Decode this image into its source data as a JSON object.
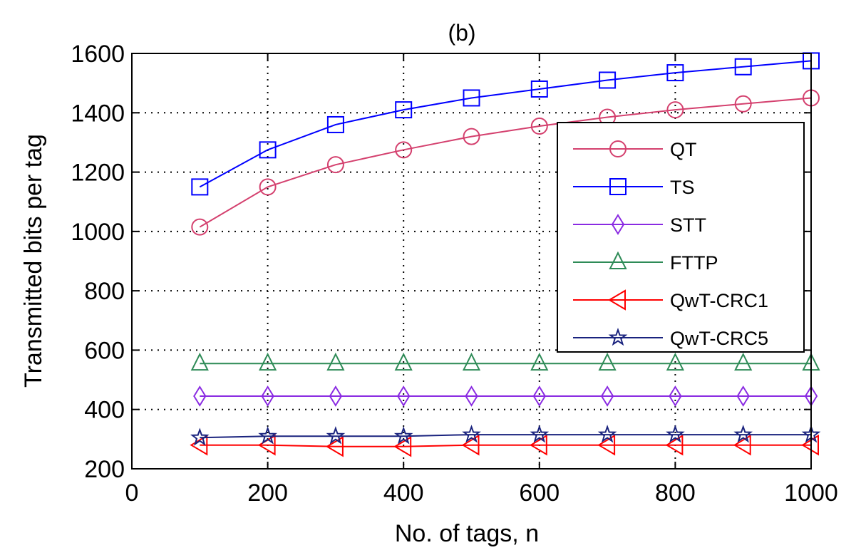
{
  "chart_data": {
    "type": "line",
    "title": "(b)",
    "xlabel": "No. of tags, n",
    "ylabel": "Transmitted bits per tag",
    "xlim": [
      0,
      1000
    ],
    "ylim": [
      200,
      1600
    ],
    "xticks": [
      0,
      200,
      400,
      600,
      800,
      1000
    ],
    "yticks": [
      200,
      400,
      600,
      800,
      1000,
      1200,
      1400,
      1600
    ],
    "xtick_labels": [
      "0",
      "200",
      "400",
      "600",
      "800",
      "1000"
    ],
    "ytick_labels": [
      "200",
      "400",
      "600",
      "800",
      "1000",
      "1200",
      "1400",
      "1600"
    ],
    "grid": true,
    "legend_position": "center-right",
    "x": [
      100,
      200,
      300,
      400,
      500,
      600,
      700,
      800,
      900,
      1000
    ],
    "series": [
      {
        "name": "QT",
        "color": "#d4406e",
        "marker": "circle",
        "values": [
          1015,
          1150,
          1225,
          1275,
          1320,
          1355,
          1385,
          1410,
          1430,
          1450
        ]
      },
      {
        "name": "TS",
        "color": "#0000ff",
        "marker": "square",
        "values": [
          1150,
          1275,
          1360,
          1410,
          1450,
          1480,
          1510,
          1535,
          1555,
          1575
        ]
      },
      {
        "name": "STT",
        "color": "#8a2be2",
        "marker": "diamond",
        "values": [
          445,
          445,
          445,
          445,
          445,
          445,
          445,
          445,
          445,
          445
        ]
      },
      {
        "name": "FTTP",
        "color": "#2e8b57",
        "marker": "triangle-up",
        "values": [
          555,
          555,
          555,
          555,
          555,
          555,
          555,
          555,
          555,
          555
        ]
      },
      {
        "name": "QwT-CRC1",
        "color": "#ff0000",
        "marker": "triangle-left",
        "values": [
          280,
          280,
          275,
          275,
          280,
          280,
          280,
          280,
          280,
          280
        ]
      },
      {
        "name": "QwT-CRC5",
        "color": "#1a237e",
        "marker": "star",
        "values": [
          305,
          310,
          310,
          310,
          315,
          315,
          315,
          315,
          315,
          315
        ]
      }
    ]
  }
}
